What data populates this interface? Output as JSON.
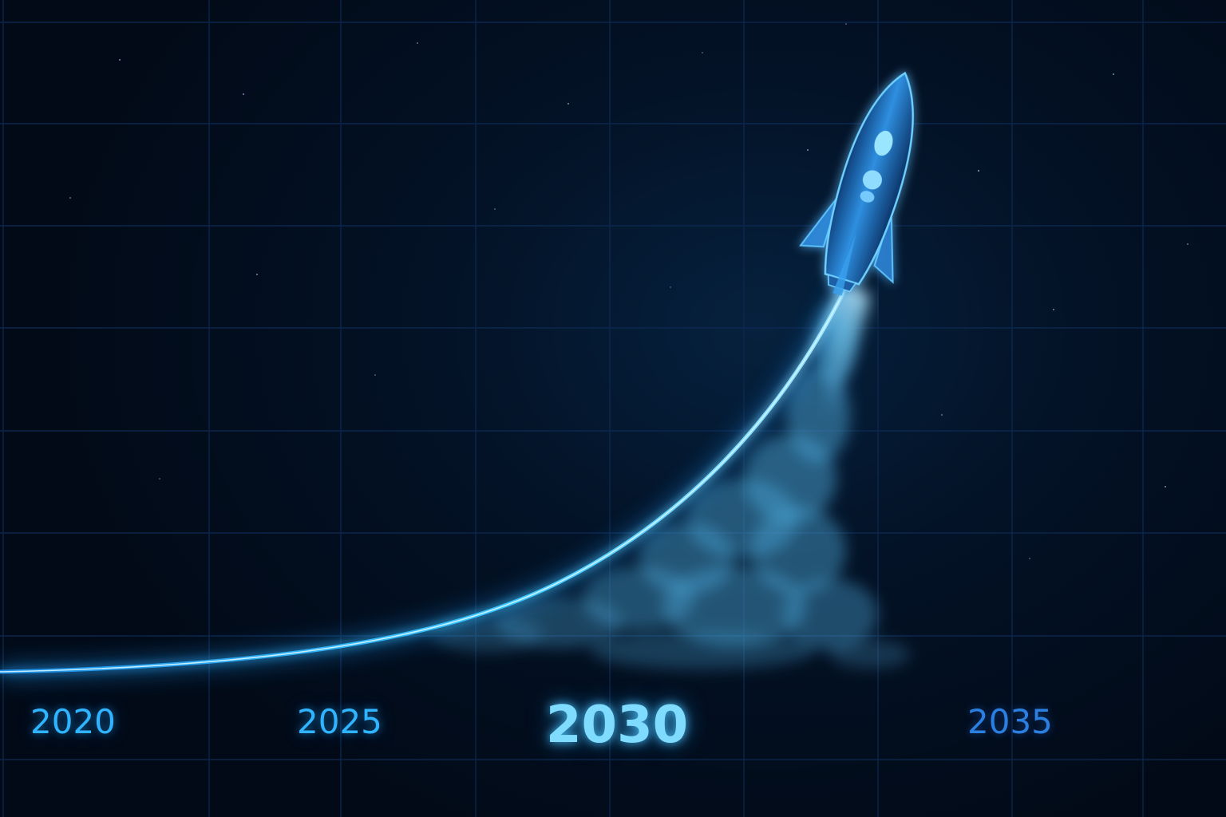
{
  "years": [
    "2020",
    "2025",
    "2030",
    "2035"
  ],
  "highlighted_year": "2030",
  "colors": {
    "background": "#020a17",
    "grid": "#0e2a55",
    "curve": "#35c8ff",
    "label": "#2fb4ff",
    "highlight_label": "#7fdcff",
    "future_label": "#2a7fe0",
    "rocket": "#2a8fe6",
    "smoke": "#5ab6e0"
  },
  "icons": {
    "rocket": "rocket-icon"
  }
}
